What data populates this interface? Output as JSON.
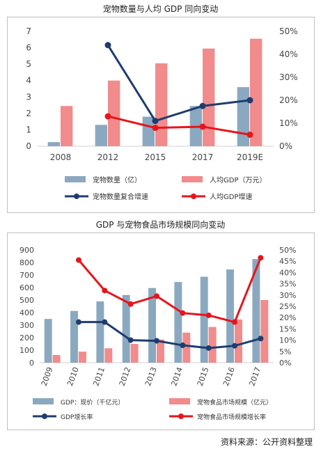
{
  "charts": [
    {
      "title": "宠物数量与人均 GDP 同向变动",
      "chart_data": {
        "type": "bar",
        "categories": [
          "2008",
          "2012",
          "2015",
          "2017",
          "2019E"
        ],
        "left_axis": {
          "ylim": [
            0,
            7
          ],
          "ticks": [
            "0",
            "1",
            "2",
            "3",
            "4",
            "5",
            "6",
            "7"
          ]
        },
        "right_axis": {
          "ylim": [
            0,
            0.5
          ],
          "ticks": [
            "0%",
            "10%",
            "20%",
            "30%",
            "40%",
            "50%"
          ]
        },
        "series": [
          {
            "name": "宠物数量（亿）",
            "kind": "bar",
            "axis": "left",
            "color": "#8aa9c1",
            "values": [
              0.25,
              1.3,
              1.8,
              2.45,
              3.6
            ]
          },
          {
            "name": "人均GDP（万元）",
            "kind": "bar",
            "axis": "left",
            "color": "#f28b8b",
            "values": [
              2.45,
              4.0,
              5.05,
              5.95,
              6.55
            ]
          },
          {
            "name": "宠物数量复合增速",
            "kind": "line",
            "axis": "right",
            "color": "#1f3c6e",
            "values": [
              null,
              0.44,
              0.11,
              0.175,
              0.2
            ]
          },
          {
            "name": "人均GDP增速",
            "kind": "line",
            "axis": "right",
            "color": "#e8141b",
            "values": [
              null,
              0.13,
              0.08,
              0.085,
              0.05
            ]
          }
        ],
        "legend_placement": "bottom",
        "grid": false
      }
    },
    {
      "title": "GDP 与宠物食品市场规模同向变动",
      "chart_data": {
        "type": "bar",
        "categories": [
          "2009",
          "2010",
          "2011",
          "2012",
          "2013",
          "2014",
          "2015",
          "2016",
          "2017"
        ],
        "left_axis": {
          "ylim": [
            0,
            900
          ],
          "ticks": [
            "0",
            "100",
            "200",
            "300",
            "400",
            "500",
            "600",
            "700",
            "800",
            "900"
          ]
        },
        "right_axis": {
          "ylim": [
            0,
            0.5
          ],
          "ticks": [
            "0%",
            "5%",
            "10%",
            "15%",
            "20%",
            "25%",
            "30%",
            "35%",
            "40%",
            "45%",
            "50%"
          ]
        },
        "series": [
          {
            "name": "GDP：现价（千亿元）",
            "kind": "bar",
            "axis": "left",
            "color": "#8aa9c1",
            "values": [
              349,
              413,
              489,
              540,
              596,
              644,
              686,
              744,
              827
            ]
          },
          {
            "name": "宠物食品市场规模（亿元）",
            "kind": "bar",
            "axis": "left",
            "color": "#f28b8b",
            "values": [
              62,
              88,
              115,
              150,
              185,
              240,
              285,
              345,
              500
            ]
          },
          {
            "name": "GDP增长率",
            "kind": "line",
            "axis": "right",
            "color": "#1f3c6e",
            "values": [
              null,
              0.18,
              0.18,
              0.1,
              0.097,
              0.077,
              0.065,
              0.075,
              0.107
            ]
          },
          {
            "name": "宠物食品市场规模增长率",
            "kind": "line",
            "axis": "right",
            "color": "#e8141b",
            "values": [
              null,
              0.455,
              0.32,
              0.26,
              0.295,
              0.22,
              0.21,
              0.18,
              0.465
            ]
          }
        ],
        "legend_placement": "bottom",
        "grid": false
      }
    }
  ],
  "source": "资料来源：公开资料整理"
}
